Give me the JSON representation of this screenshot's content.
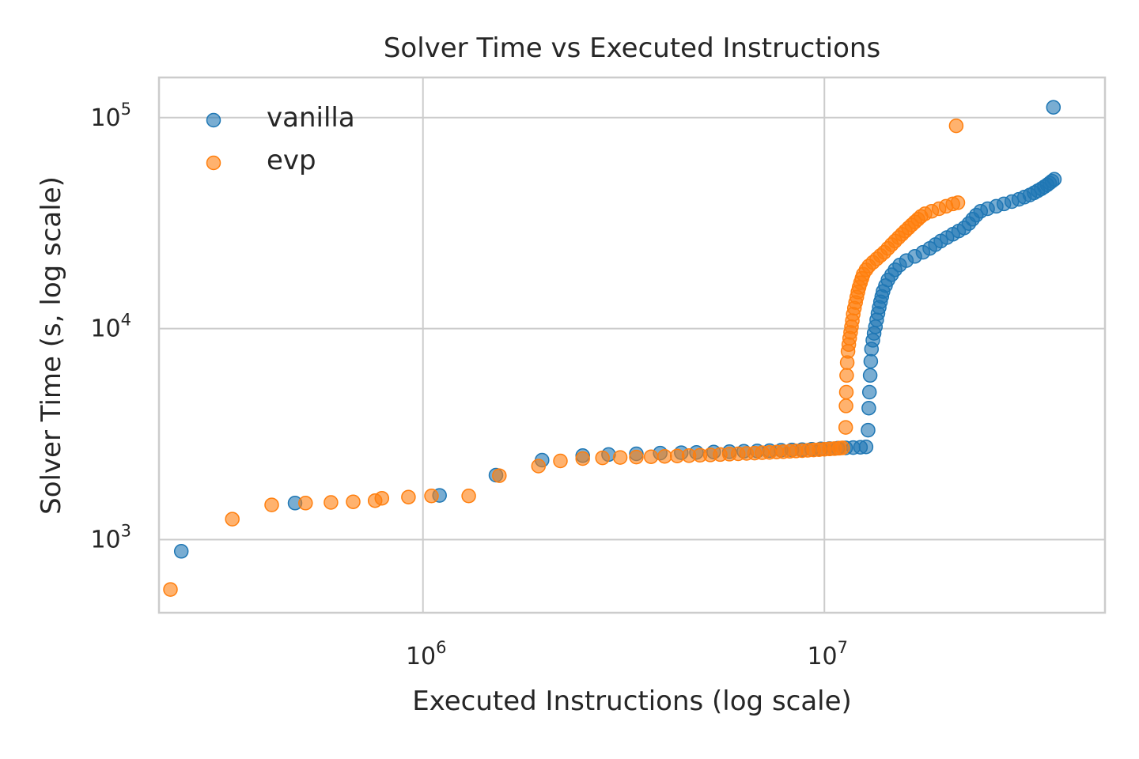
{
  "chart_data": {
    "type": "scatter",
    "title": "Solver Time vs Executed Instructions",
    "xlabel": "Executed Instructions (log scale)",
    "ylabel": "Solver Time (s, log scale)",
    "xscale": "log",
    "yscale": "log",
    "xlim": [
      220000,
      50000000
    ],
    "ylim": [
      450,
      155000
    ],
    "grid": true,
    "legend_position": "top-left",
    "x_ticks": [
      {
        "base": "10",
        "exp": "6",
        "value": 1000000
      },
      {
        "base": "10",
        "exp": "7",
        "value": 10000000
      }
    ],
    "y_ticks": [
      {
        "base": "10",
        "exp": "3",
        "value": 1000
      },
      {
        "base": "10",
        "exp": "4",
        "value": 10000
      },
      {
        "base": "10",
        "exp": "5",
        "value": 100000
      }
    ],
    "series": [
      {
        "name": "vanilla",
        "color": "#1f77b4",
        "points": [
          [
            250000,
            880
          ],
          [
            480000,
            1490
          ],
          [
            1100000,
            1620
          ],
          [
            1520000,
            2020
          ],
          [
            1980000,
            2380
          ],
          [
            2500000,
            2500
          ],
          [
            2900000,
            2530
          ],
          [
            3400000,
            2550
          ],
          [
            3900000,
            2570
          ],
          [
            4400000,
            2580
          ],
          [
            4800000,
            2590
          ],
          [
            5300000,
            2600
          ],
          [
            5800000,
            2610
          ],
          [
            6300000,
            2620
          ],
          [
            6800000,
            2630
          ],
          [
            7300000,
            2640
          ],
          [
            7800000,
            2650
          ],
          [
            8300000,
            2660
          ],
          [
            8800000,
            2670
          ],
          [
            9300000,
            2680
          ],
          [
            9800000,
            2690
          ],
          [
            10300000,
            2700
          ],
          [
            10800000,
            2710
          ],
          [
            11300000,
            2720
          ],
          [
            11800000,
            2730
          ],
          [
            12300000,
            2740
          ],
          [
            12700000,
            2750
          ],
          [
            12850000,
            3300
          ],
          [
            12900000,
            4200
          ],
          [
            12950000,
            5000
          ],
          [
            13000000,
            6000
          ],
          [
            13050000,
            7000
          ],
          [
            13100000,
            8000
          ],
          [
            13200000,
            8800
          ],
          [
            13300000,
            9500
          ],
          [
            13400000,
            10200
          ],
          [
            13500000,
            11000
          ],
          [
            13600000,
            11800
          ],
          [
            13700000,
            12600
          ],
          [
            13800000,
            13400
          ],
          [
            13900000,
            14200
          ],
          [
            14000000,
            15000
          ],
          [
            14200000,
            16000
          ],
          [
            14400000,
            17000
          ],
          [
            14700000,
            18000
          ],
          [
            15000000,
            19000
          ],
          [
            15400000,
            20000
          ],
          [
            16000000,
            21000
          ],
          [
            16800000,
            22000
          ],
          [
            17600000,
            23000
          ],
          [
            18300000,
            24000
          ],
          [
            18900000,
            25000
          ],
          [
            19500000,
            26000
          ],
          [
            20200000,
            27000
          ],
          [
            20900000,
            28000
          ],
          [
            21600000,
            29000
          ],
          [
            22300000,
            30000
          ],
          [
            22900000,
            31500
          ],
          [
            23400000,
            33000
          ],
          [
            23900000,
            34500
          ],
          [
            24500000,
            36000
          ],
          [
            25500000,
            37000
          ],
          [
            26800000,
            38000
          ],
          [
            28000000,
            39000
          ],
          [
            29300000,
            40000
          ],
          [
            30500000,
            41000
          ],
          [
            31500000,
            42000
          ],
          [
            32500000,
            43000
          ],
          [
            33300000,
            44000
          ],
          [
            34000000,
            45000
          ],
          [
            34700000,
            46000
          ],
          [
            35300000,
            47000
          ],
          [
            35900000,
            48000
          ],
          [
            36400000,
            49000
          ],
          [
            36900000,
            50000
          ],
          [
            37400000,
            51000
          ],
          [
            37200000,
            112000
          ]
        ]
      },
      {
        "name": "evp",
        "color": "#ff7f0e",
        "points": [
          [
            235000,
            580
          ],
          [
            335000,
            1250
          ],
          [
            420000,
            1460
          ],
          [
            510000,
            1490
          ],
          [
            590000,
            1500
          ],
          [
            670000,
            1510
          ],
          [
            760000,
            1530
          ],
          [
            790000,
            1570
          ],
          [
            920000,
            1590
          ],
          [
            1050000,
            1610
          ],
          [
            1300000,
            1610
          ],
          [
            1550000,
            2010
          ],
          [
            1940000,
            2230
          ],
          [
            2200000,
            2360
          ],
          [
            2500000,
            2420
          ],
          [
            2800000,
            2440
          ],
          [
            3100000,
            2450
          ],
          [
            3400000,
            2460
          ],
          [
            3700000,
            2470
          ],
          [
            4000000,
            2480
          ],
          [
            4300000,
            2490
          ],
          [
            4600000,
            2500
          ],
          [
            4900000,
            2510
          ],
          [
            5200000,
            2520
          ],
          [
            5500000,
            2530
          ],
          [
            5800000,
            2540
          ],
          [
            6100000,
            2550
          ],
          [
            6400000,
            2560
          ],
          [
            6700000,
            2570
          ],
          [
            7000000,
            2580
          ],
          [
            7300000,
            2590
          ],
          [
            7600000,
            2600
          ],
          [
            7900000,
            2610
          ],
          [
            8200000,
            2620
          ],
          [
            8500000,
            2630
          ],
          [
            8800000,
            2640
          ],
          [
            9100000,
            2650
          ],
          [
            9400000,
            2660
          ],
          [
            9700000,
            2670
          ],
          [
            10000000,
            2680
          ],
          [
            10300000,
            2690
          ],
          [
            10600000,
            2700
          ],
          [
            10900000,
            2710
          ],
          [
            11100000,
            2720
          ],
          [
            11300000,
            3400
          ],
          [
            11320000,
            4300
          ],
          [
            11340000,
            5000
          ],
          [
            11360000,
            6000
          ],
          [
            11400000,
            6900
          ],
          [
            11450000,
            7800
          ],
          [
            11500000,
            8400
          ],
          [
            11560000,
            9000
          ],
          [
            11620000,
            9600
          ],
          [
            11680000,
            10200
          ],
          [
            11740000,
            10900
          ],
          [
            11800000,
            11700
          ],
          [
            11880000,
            12500
          ],
          [
            11960000,
            13300
          ],
          [
            12040000,
            14100
          ],
          [
            12120000,
            14900
          ],
          [
            12200000,
            15700
          ],
          [
            12300000,
            16500
          ],
          [
            12400000,
            17300
          ],
          [
            12500000,
            18100
          ],
          [
            12700000,
            19000
          ],
          [
            12900000,
            19800
          ],
          [
            13200000,
            20600
          ],
          [
            13500000,
            21400
          ],
          [
            13800000,
            22200
          ],
          [
            14100000,
            23000
          ],
          [
            14400000,
            24000
          ],
          [
            14700000,
            25000
          ],
          [
            15000000,
            26000
          ],
          [
            15300000,
            27000
          ],
          [
            15600000,
            28000
          ],
          [
            15900000,
            29000
          ],
          [
            16200000,
            30000
          ],
          [
            16500000,
            31000
          ],
          [
            16800000,
            32000
          ],
          [
            17100000,
            33000
          ],
          [
            17400000,
            34000
          ],
          [
            17800000,
            35000
          ],
          [
            18500000,
            36000
          ],
          [
            19300000,
            37000
          ],
          [
            20100000,
            38000
          ],
          [
            20900000,
            39000
          ],
          [
            21500000,
            39500
          ],
          [
            21300000,
            91500
          ]
        ]
      }
    ]
  }
}
